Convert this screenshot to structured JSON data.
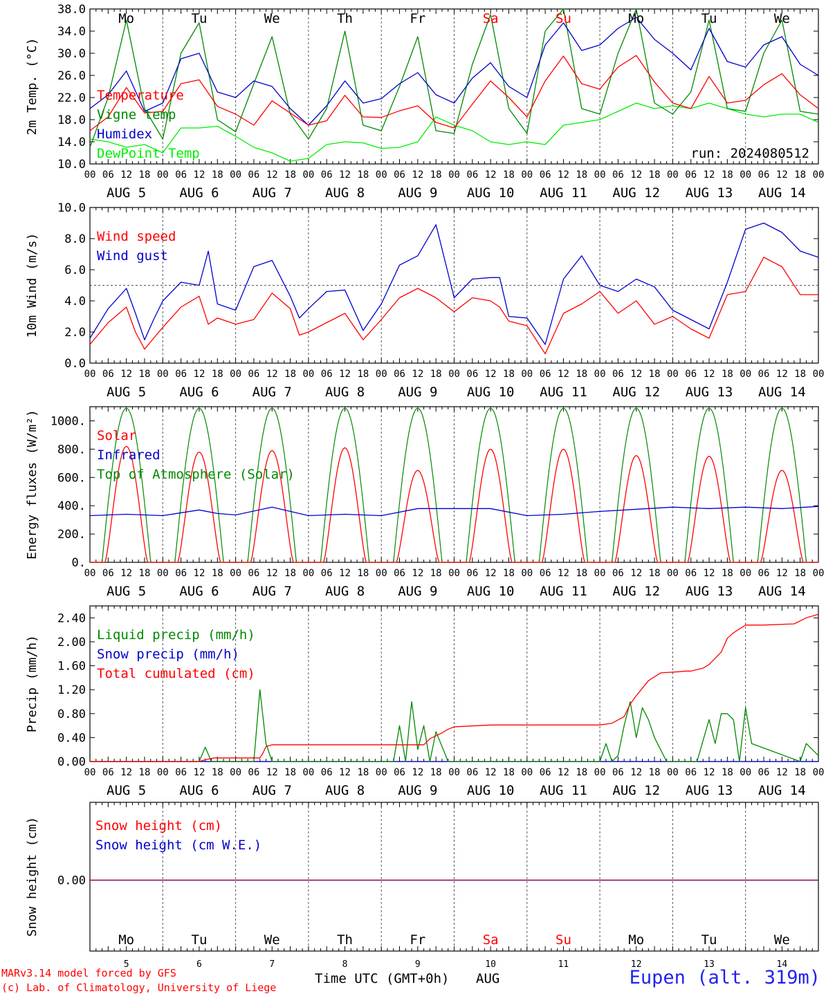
{
  "chart_data": {
    "type": "line",
    "days": [
      "Mo",
      "Tu",
      "We",
      "Th",
      "Fr",
      "Sa",
      "Su",
      "Mo",
      "Tu",
      "We"
    ],
    "weekend_days": [
      "Sa",
      "Su"
    ],
    "day_numbers": [
      "5",
      "6",
      "7",
      "8",
      "9",
      "10",
      "11",
      "12",
      "13",
      "14"
    ],
    "date_labels": [
      "AUG  5",
      "AUG  6",
      "AUG  7",
      "AUG  8",
      "AUG  9",
      "AUG 10",
      "AUG 11",
      "AUG 12",
      "AUG 13",
      "AUG 14"
    ],
    "hour_ticks": [
      "00",
      "06",
      "12",
      "18"
    ],
    "final_tick": "00",
    "run_label": "run: 2024080512",
    "time_axis_label": "Time UTC (GMT+0h)",
    "month_label": "AUG",
    "panels": [
      {
        "id": "temp",
        "ylabel": "2m Temp. (°C)",
        "ylim": [
          10,
          38
        ],
        "yticks": [
          "10.0",
          "14.0",
          "18.0",
          "22.0",
          "26.0",
          "30.0",
          "34.0",
          "38.0"
        ],
        "yticks_values": [
          10,
          14,
          18,
          22,
          26,
          30,
          34,
          38
        ],
        "series": [
          {
            "name": "Temperature",
            "color": "#ff0000",
            "x": [
              0,
              6,
              12,
              18,
              24,
              30,
              36,
              42,
              48,
              54,
              60,
              66,
              72,
              78,
              84,
              90,
              96,
              102,
              108,
              114,
              120,
              126,
              132,
              138,
              144,
              150,
              156,
              162,
              168,
              174,
              180,
              186,
              192,
              198,
              204,
              210,
              216,
              222,
              228,
              234,
              240
            ],
            "y": [
              16.0,
              18.5,
              23.8,
              19.2,
              19.5,
              24.5,
              25.2,
              20.4,
              19.0,
              17.0,
              21.4,
              19.2,
              17.0,
              17.8,
              22.4,
              18.5,
              18.4,
              19.6,
              20.5,
              17.5,
              16.5,
              20.8,
              25.0,
              22.0,
              18.5,
              25.0,
              29.5,
              24.5,
              23.5,
              27.5,
              29.6,
              24.8,
              21.0,
              20.0,
              25.8,
              21.0,
              21.5,
              24.3,
              26.3,
              22.5,
              20.0
            ]
          },
          {
            "name": "Vigne temp",
            "color": "#008800",
            "x": [
              0,
              6,
              12,
              18,
              24,
              30,
              36,
              42,
              48,
              54,
              60,
              66,
              72,
              78,
              84,
              90,
              96,
              102,
              108,
              114,
              120,
              126,
              132,
              138,
              144,
              150,
              156,
              162,
              168,
              174,
              180,
              186,
              192,
              198,
              204,
              210,
              216,
              222,
              228,
              234,
              240
            ],
            "y": [
              13.0,
              22.0,
              36.0,
              20.0,
              14.5,
              30.0,
              35.5,
              18.0,
              15.8,
              24.5,
              33.0,
              19.0,
              14.5,
              20.0,
              34.0,
              17.0,
              16.0,
              24.0,
              33.0,
              16.0,
              15.5,
              28.0,
              37.0,
              20.0,
              15.5,
              34.0,
              38.0,
              20.0,
              19.0,
              30.0,
              38.0,
              21.0,
              19.0,
              23.0,
              36.0,
              20.0,
              19.5,
              30.0,
              36.0,
              19.5,
              19.0
            ]
          },
          {
            "name": "Humidex",
            "color": "#0000cc",
            "x": [
              0,
              6,
              12,
              18,
              24,
              30,
              36,
              42,
              48,
              54,
              60,
              66,
              72,
              78,
              84,
              90,
              96,
              102,
              108,
              114,
              120,
              126,
              132,
              138,
              144,
              150,
              156,
              162,
              168,
              174,
              180,
              186,
              192,
              198,
              204,
              210,
              216,
              222,
              228,
              234,
              240
            ],
            "y": [
              20.0,
              22.5,
              26.8,
              19.5,
              21.0,
              29.0,
              30.0,
              23.0,
              22.0,
              25.0,
              24.0,
              20.0,
              17.0,
              20.5,
              25.0,
              21.0,
              21.8,
              24.5,
              26.5,
              22.5,
              21.0,
              25.5,
              28.3,
              24.0,
              22.0,
              31.5,
              35.5,
              30.5,
              31.5,
              34.5,
              36.5,
              32.5,
              30.0,
              27.0,
              34.5,
              28.5,
              27.5,
              31.5,
              33.0,
              28.0,
              26.0
            ]
          },
          {
            "name": "DewPoint Temp",
            "color": "#00ee00",
            "x": [
              0,
              6,
              12,
              18,
              24,
              30,
              36,
              42,
              48,
              54,
              60,
              66,
              72,
              78,
              84,
              90,
              96,
              102,
              108,
              114,
              120,
              126,
              132,
              138,
              144,
              150,
              156,
              162,
              168,
              174,
              180,
              186,
              192,
              198,
              204,
              210,
              216,
              222,
              228,
              234,
              240
            ],
            "y": [
              14.5,
              14.0,
              13.0,
              13.5,
              12.0,
              16.5,
              16.5,
              16.8,
              15.0,
              13.0,
              12.0,
              10.5,
              11.0,
              13.5,
              14.0,
              13.8,
              12.8,
              13.0,
              14.0,
              18.5,
              17.0,
              16.0,
              14.0,
              13.5,
              14.0,
              13.5,
              17.0,
              17.5,
              18.0,
              19.5,
              21.0,
              20.0,
              20.5,
              20.0,
              21.0,
              20.0,
              19.0,
              18.5,
              19.0,
              19.0,
              17.5
            ]
          }
        ]
      },
      {
        "id": "wind",
        "ylabel": "10m Wind (m/s)",
        "ylim": [
          0,
          10
        ],
        "yticks": [
          "0.0",
          "2.0",
          "4.0",
          "6.0",
          "8.0",
          "10.0"
        ],
        "yticks_values": [
          0,
          2,
          4,
          6,
          8,
          10
        ],
        "ref_line": 5,
        "series": [
          {
            "name": "Wind speed",
            "color": "#ff0000",
            "x": [
              0,
              6,
              12,
              15,
              18,
              21,
              24,
              30,
              36,
              39,
              42,
              48,
              54,
              60,
              66,
              69,
              72,
              78,
              84,
              90,
              96,
              102,
              108,
              114,
              120,
              126,
              132,
              135,
              138,
              144,
              150,
              156,
              162,
              168,
              174,
              180,
              186,
              192,
              198,
              204,
              210,
              216,
              222,
              228,
              234,
              240
            ],
            "y": [
              1.2,
              2.6,
              3.6,
              2.0,
              0.9,
              1.6,
              2.3,
              3.6,
              4.3,
              2.5,
              2.9,
              2.5,
              2.8,
              4.5,
              3.5,
              1.8,
              2.0,
              2.6,
              3.2,
              1.5,
              2.8,
              4.2,
              4.8,
              4.2,
              3.3,
              4.2,
              4.0,
              3.6,
              2.7,
              2.4,
              0.6,
              3.2,
              3.8,
              4.6,
              3.2,
              4.0,
              2.5,
              3.0,
              2.2,
              1.6,
              4.4,
              4.6,
              6.8,
              6.2,
              4.4,
              4.4
            ]
          },
          {
            "name": "Wind gust",
            "color": "#0000cc",
            "x": [
              0,
              6,
              12,
              15,
              18,
              21,
              24,
              30,
              36,
              39,
              42,
              48,
              54,
              60,
              66,
              69,
              72,
              78,
              84,
              90,
              96,
              102,
              108,
              114,
              120,
              126,
              132,
              135,
              138,
              144,
              150,
              156,
              162,
              168,
              174,
              180,
              186,
              192,
              198,
              204,
              210,
              216,
              222,
              228,
              234,
              240
            ],
            "y": [
              1.6,
              3.5,
              4.8,
              3.2,
              1.5,
              2.8,
              4.0,
              5.2,
              5.0,
              7.2,
              3.8,
              3.4,
              6.2,
              6.6,
              4.3,
              2.9,
              3.5,
              4.6,
              4.7,
              2.1,
              3.8,
              6.3,
              6.9,
              8.9,
              4.2,
              5.4,
              5.5,
              5.5,
              3.0,
              2.9,
              1.2,
              5.4,
              6.9,
              5.0,
              4.6,
              5.4,
              4.9,
              3.4,
              2.8,
              2.2,
              5.2,
              8.6,
              9.0,
              8.4,
              7.2,
              6.8
            ]
          }
        ]
      },
      {
        "id": "flux",
        "ylabel": "Energy fluxes (W/m²)",
        "ylim": [
          0,
          1100
        ],
        "yticks": [
          "0.",
          "200.",
          "400.",
          "600.",
          "800.",
          "1000."
        ],
        "yticks_values": [
          0,
          200,
          400,
          600,
          800,
          1000
        ],
        "series": [
          {
            "name": "Solar",
            "color": "#ff0000",
            "peaks": [
              820,
              780,
              790,
              810,
              650,
              800,
              800,
              755,
              750,
              650
            ]
          },
          {
            "name": "Infrared",
            "color": "#0000cc",
            "x": [
              0,
              12,
              24,
              36,
              42,
              48,
              60,
              72,
              84,
              96,
              108,
              120,
              132,
              144,
              156,
              168,
              180,
              192,
              204,
              216,
              228,
              240
            ],
            "y": [
              330,
              340,
              330,
              370,
              345,
              335,
              390,
              330,
              340,
              330,
              380,
              380,
              380,
              330,
              340,
              360,
              375,
              390,
              380,
              390,
              380,
              395
            ]
          },
          {
            "name": "Top of Atmosphere (Solar)",
            "color": "#008800",
            "peak": 1090
          }
        ]
      },
      {
        "id": "precip",
        "ylabel": "Precip (mm/h)",
        "ylim": [
          0,
          2.6
        ],
        "yticks": [
          "0.00",
          "0.40",
          "0.80",
          "1.20",
          "1.60",
          "2.00",
          "2.40"
        ],
        "yticks_values": [
          0,
          0.4,
          0.8,
          1.2,
          1.6,
          2.0,
          2.4
        ],
        "series": [
          {
            "name": "Liquid precip (mm/h)",
            "color": "#008800",
            "x": [
              0,
              36,
              38,
              40,
              44,
              48,
              54,
              56,
              58,
              60,
              64,
              100,
              102,
              104,
              106,
              108,
              110,
              112,
              114,
              118,
              120,
              168,
              170,
              172,
              174,
              176,
              178,
              180,
              182,
              184,
              186,
              190,
              200,
              204,
              206,
              208,
              210,
              212,
              214,
              216,
              218,
              234,
              236,
              238,
              240
            ],
            "y": [
              0,
              0,
              0.24,
              0,
              0,
              0,
              0,
              1.2,
              0.3,
              0,
              0,
              0,
              0.6,
              0,
              1.0,
              0.2,
              0.6,
              0,
              0.5,
              0,
              0,
              0,
              0.3,
              0,
              0.1,
              0.6,
              1.0,
              0.4,
              0.9,
              0.7,
              0.4,
              0,
              0,
              0.7,
              0.3,
              0.8,
              0.8,
              0.7,
              0,
              0.9,
              0.3,
              0,
              0.3,
              0.2,
              0.1
            ]
          },
          {
            "name": "Snow precip (mm/h)",
            "color": "#0000cc",
            "x": [
              0,
              240
            ],
            "y": [
              0,
              0
            ]
          },
          {
            "name": "Total cumulated (cm)",
            "color": "#ff0000",
            "x": [
              0,
              36,
              38,
              41,
              56,
              57,
              58,
              60,
              62,
              64,
              110,
              112,
              114,
              116,
              118,
              120,
              132,
              168,
              172,
              176,
              178,
              180,
              184,
              188,
              194,
              196,
              198,
              202,
              204,
              208,
              210,
              212,
              216,
              222,
              232,
              236,
              240
            ],
            "y": [
              0,
              0,
              0.03,
              0.06,
              0.06,
              0.14,
              0.25,
              0.28,
              0.28,
              0.28,
              0.28,
              0.38,
              0.43,
              0.48,
              0.54,
              0.58,
              0.61,
              0.61,
              0.64,
              0.75,
              0.96,
              1.1,
              1.35,
              1.48,
              1.5,
              1.51,
              1.51,
              1.56,
              1.62,
              1.83,
              2.06,
              2.15,
              2.28,
              2.28,
              2.3,
              2.4,
              2.46
            ]
          }
        ]
      },
      {
        "id": "snow",
        "ylabel": "Snow height (cm)",
        "yticks": [
          "0.00"
        ],
        "yticks_values": [
          0
        ],
        "series": [
          {
            "name": "Snow height (cm)",
            "color": "#ff0000",
            "x": [
              0,
              240
            ],
            "y": [
              0,
              0
            ]
          },
          {
            "name": "Snow height (cm W.E.)",
            "color": "#0000cc",
            "x": [
              0,
              240
            ],
            "y": [
              0,
              0
            ]
          }
        ]
      }
    ]
  },
  "footer": {
    "credit_line1": "MARv3.14 model forced by GFS",
    "credit_line2": "(c) Lab. of Climatology, University of Liege",
    "station": "Eupen (alt. 319m)"
  }
}
